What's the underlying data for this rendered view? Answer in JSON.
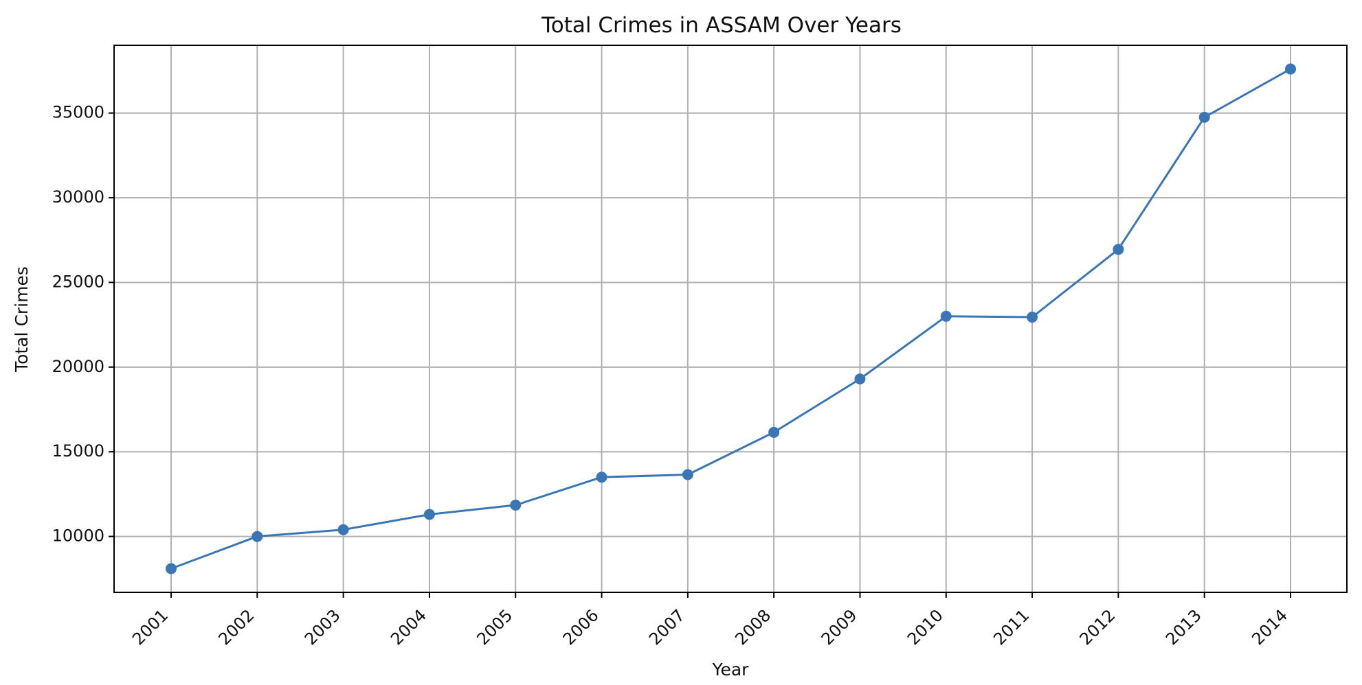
{
  "chart_data": {
    "type": "line",
    "title": "Total Crimes in ASSAM Over Years",
    "xlabel": "Year",
    "ylabel": "Total Crimes",
    "x": [
      "2001",
      "2002",
      "2003",
      "2004",
      "2005",
      "2006",
      "2007",
      "2008",
      "2009",
      "2010",
      "2011",
      "2012",
      "2013",
      "2014"
    ],
    "series": [
      {
        "values": [
          8100,
          10000,
          10400,
          11300,
          11850,
          13500,
          13650,
          16150,
          19300,
          23000,
          22950,
          26950,
          34750,
          37600
        ],
        "color": "#3a76b5",
        "marker": "circle"
      }
    ],
    "yticks": [
      10000,
      15000,
      20000,
      25000,
      30000,
      35000
    ],
    "ylim": [
      6700,
      39000
    ],
    "grid": true,
    "legend": "none"
  }
}
